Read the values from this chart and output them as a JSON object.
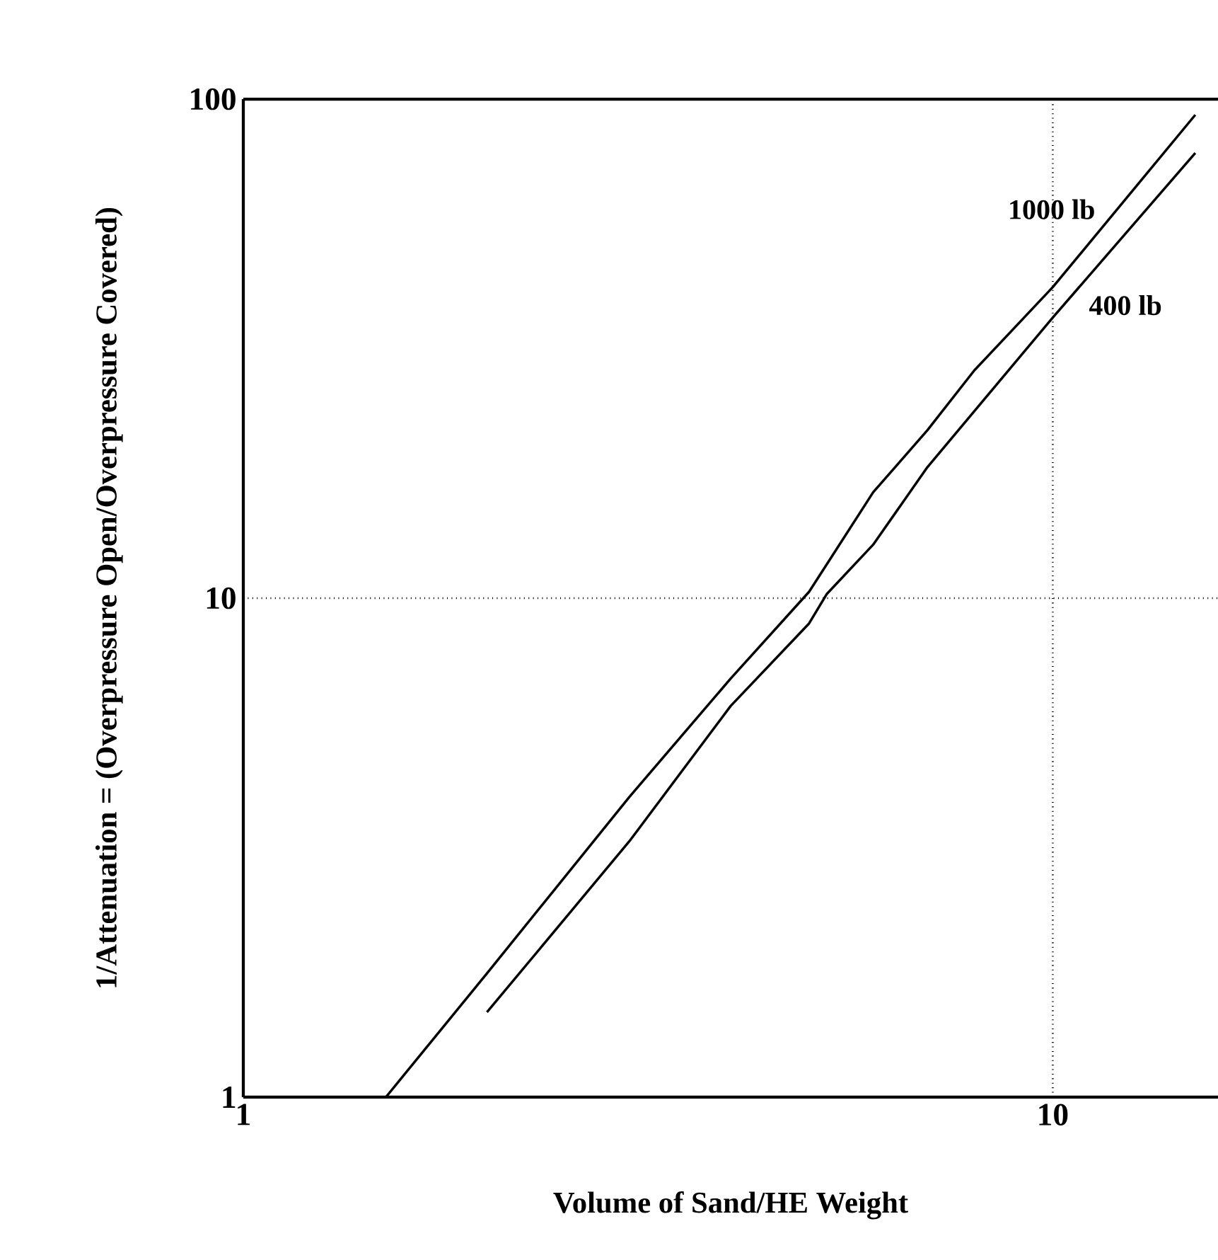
{
  "chart_data": {
    "type": "line",
    "xlabel": "Volume of Sand/HE Weight",
    "ylabel": "1/Attenuation = (Overpressure Open/Overpressure Covered)",
    "log": "xy",
    "grid": true,
    "marker": "none",
    "line_style": "solid",
    "xlim": [
      1,
      16
    ],
    "ylim": [
      1,
      100
    ],
    "xticks": [
      1,
      10
    ],
    "yticks": [
      1,
      10,
      100
    ],
    "series": [
      {
        "name": "1000 lb",
        "color": "#000000",
        "x": [
          1.5,
          2,
          3,
          4,
          5,
          6,
          7,
          8,
          10,
          15
        ],
        "values": [
          1,
          1.77,
          4.0,
          6.9,
          10.3,
          16.3,
          21.7,
          28.6,
          42,
          93
        ]
      },
      {
        "name": "400 lb",
        "color": "#000000",
        "x": [
          2,
          3,
          4,
          5,
          5.26,
          6,
          7,
          8,
          10,
          15
        ],
        "values": [
          1.48,
          3.26,
          6.08,
          8.9,
          10.2,
          12.8,
          18.3,
          23.7,
          36.5,
          78
        ]
      }
    ]
  }
}
